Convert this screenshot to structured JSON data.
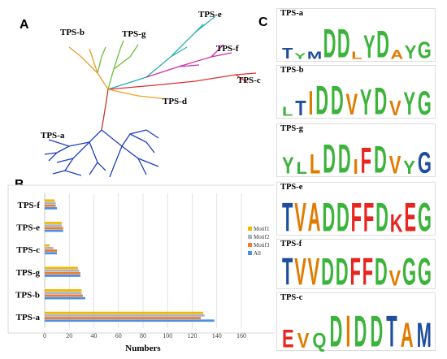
{
  "panels": {
    "a": "A",
    "b": "B",
    "c": "C"
  },
  "tree_labels": [
    "TPS-b",
    "TPS-g",
    "TPS-e",
    "TPS-f",
    "TPS-c",
    "TPS-d",
    "TPS-a"
  ],
  "chart_data": {
    "type": "bar",
    "orientation": "horizontal",
    "categories": [
      "TPS-f",
      "TPS-e",
      "TPS-c",
      "TPS-g",
      "TPS-b",
      "TPS-a"
    ],
    "series": [
      {
        "name": "Motif1",
        "color": "#f2b800",
        "values": [
          8,
          14,
          4,
          27,
          30,
          129
        ]
      },
      {
        "name": "Motif2",
        "color": "#a8b4c8",
        "values": [
          9,
          14,
          7,
          28,
          30,
          130
        ]
      },
      {
        "name": "Motif3",
        "color": "#ed7d31",
        "values": [
          9,
          15,
          10,
          29,
          31,
          127
        ]
      },
      {
        "name": "All",
        "color": "#4a90e2",
        "values": [
          10,
          15,
          10,
          29,
          33,
          138
        ]
      }
    ],
    "xlabel": "Numbers",
    "xlim": [
      0,
      160
    ],
    "xticks": [
      0,
      20,
      40,
      60,
      80,
      100,
      120,
      140,
      160
    ],
    "grid": true,
    "legend": "right"
  },
  "logos": [
    {
      "title": "TPS-a",
      "letters": [
        {
          "c": "T",
          "col": "#1f4e9e",
          "h": 0.35
        },
        {
          "c": "Y",
          "col": "#3cb43c",
          "h": 0.2
        },
        {
          "c": "M",
          "col": "#1f4e9e",
          "h": 0.25
        },
        {
          "c": "D",
          "col": "#3cb43c",
          "h": 0.95
        },
        {
          "c": "D",
          "col": "#3cb43c",
          "h": 0.95
        },
        {
          "c": "L",
          "col": "#e07b00",
          "h": 0.25
        },
        {
          "c": "Y",
          "col": "#3cb43c",
          "h": 0.75
        },
        {
          "c": "D",
          "col": "#3cb43c",
          "h": 0.9
        },
        {
          "c": "A",
          "col": "#e07b00",
          "h": 0.3
        },
        {
          "c": "Y",
          "col": "#3cb43c",
          "h": 0.45
        },
        {
          "c": "G",
          "col": "#3cb43c",
          "h": 0.55
        }
      ]
    },
    {
      "title": "TPS-b",
      "letters": [
        {
          "c": "L",
          "col": "#3cb43c",
          "h": 0.3
        },
        {
          "c": "T",
          "col": "#1f4e9e",
          "h": 0.5
        },
        {
          "c": "I",
          "col": "#e07b00",
          "h": 0.8
        },
        {
          "c": "D",
          "col": "#3cb43c",
          "h": 0.95
        },
        {
          "c": "D",
          "col": "#3cb43c",
          "h": 0.95
        },
        {
          "c": "V",
          "col": "#e07b00",
          "h": 0.7
        },
        {
          "c": "Y",
          "col": "#3cb43c",
          "h": 0.85
        },
        {
          "c": "D",
          "col": "#3cb43c",
          "h": 0.9
        },
        {
          "c": "V",
          "col": "#e07b00",
          "h": 0.5
        },
        {
          "c": "Y",
          "col": "#3cb43c",
          "h": 0.75
        },
        {
          "c": "G",
          "col": "#3cb43c",
          "h": 0.8
        }
      ]
    },
    {
      "title": "TPS-g",
      "letters": [
        {
          "c": "Y",
          "col": "#3cb43c",
          "h": 0.55
        },
        {
          "c": "L",
          "col": "#3cb43c",
          "h": 0.4
        },
        {
          "c": "L",
          "col": "#e07b00",
          "h": 0.65
        },
        {
          "c": "D",
          "col": "#3cb43c",
          "h": 0.95
        },
        {
          "c": "D",
          "col": "#3cb43c",
          "h": 0.95
        },
        {
          "c": "I",
          "col": "#e07b00",
          "h": 0.5
        },
        {
          "c": "F",
          "col": "#e8251f",
          "h": 0.85
        },
        {
          "c": "D",
          "col": "#3cb43c",
          "h": 0.9
        },
        {
          "c": "V",
          "col": "#e07b00",
          "h": 0.6
        },
        {
          "c": "Y",
          "col": "#3cb43c",
          "h": 0.45
        },
        {
          "c": "G",
          "col": "#1f4e9e",
          "h": 0.7
        }
      ]
    },
    {
      "title": "TPS-e",
      "letters": [
        {
          "c": "T",
          "col": "#1f4e9e",
          "h": 0.95
        },
        {
          "c": "V",
          "col": "#e07b00",
          "h": 0.95
        },
        {
          "c": "A",
          "col": "#e07b00",
          "h": 0.95
        },
        {
          "c": "D",
          "col": "#3cb43c",
          "h": 0.95
        },
        {
          "c": "D",
          "col": "#3cb43c",
          "h": 0.95
        },
        {
          "c": "F",
          "col": "#e8251f",
          "h": 0.95
        },
        {
          "c": "F",
          "col": "#e8251f",
          "h": 0.95
        },
        {
          "c": "D",
          "col": "#3cb43c",
          "h": 0.95
        },
        {
          "c": "K",
          "col": "#e8251f",
          "h": 0.6
        },
        {
          "c": "E",
          "col": "#e8251f",
          "h": 0.95
        },
        {
          "c": "G",
          "col": "#3cb43c",
          "h": 0.95
        }
      ]
    },
    {
      "title": "TPS-f",
      "letters": [
        {
          "c": "T",
          "col": "#1f4e9e",
          "h": 0.95
        },
        {
          "c": "V",
          "col": "#e07b00",
          "h": 0.95
        },
        {
          "c": "V",
          "col": "#e07b00",
          "h": 0.95
        },
        {
          "c": "D",
          "col": "#3cb43c",
          "h": 0.95
        },
        {
          "c": "D",
          "col": "#3cb43c",
          "h": 0.95
        },
        {
          "c": "F",
          "col": "#e8251f",
          "h": 0.95
        },
        {
          "c": "F",
          "col": "#e8251f",
          "h": 0.95
        },
        {
          "c": "D",
          "col": "#3cb43c",
          "h": 0.95
        },
        {
          "c": "V",
          "col": "#e07b00",
          "h": 0.55
        },
        {
          "c": "G",
          "col": "#3cb43c",
          "h": 0.95
        },
        {
          "c": "G",
          "col": "#3cb43c",
          "h": 0.95
        }
      ]
    },
    {
      "title": "TPS-c",
      "letters": [
        {
          "c": "E",
          "col": "#e8251f",
          "h": 0.55
        },
        {
          "c": "V",
          "col": "#e07b00",
          "h": 0.45
        },
        {
          "c": "Q",
          "col": "#3cb43c",
          "h": 0.45
        },
        {
          "c": "D",
          "col": "#3cb43c",
          "h": 0.95
        },
        {
          "c": "I",
          "col": "#e07b00",
          "h": 0.95
        },
        {
          "c": "D",
          "col": "#3cb43c",
          "h": 0.95
        },
        {
          "c": "D",
          "col": "#3cb43c",
          "h": 0.95
        },
        {
          "c": "T",
          "col": "#1f4e9e",
          "h": 0.95
        },
        {
          "c": "A",
          "col": "#e07b00",
          "h": 0.75
        },
        {
          "c": "M",
          "col": "#1f4e9e",
          "h": 0.75
        }
      ]
    }
  ]
}
